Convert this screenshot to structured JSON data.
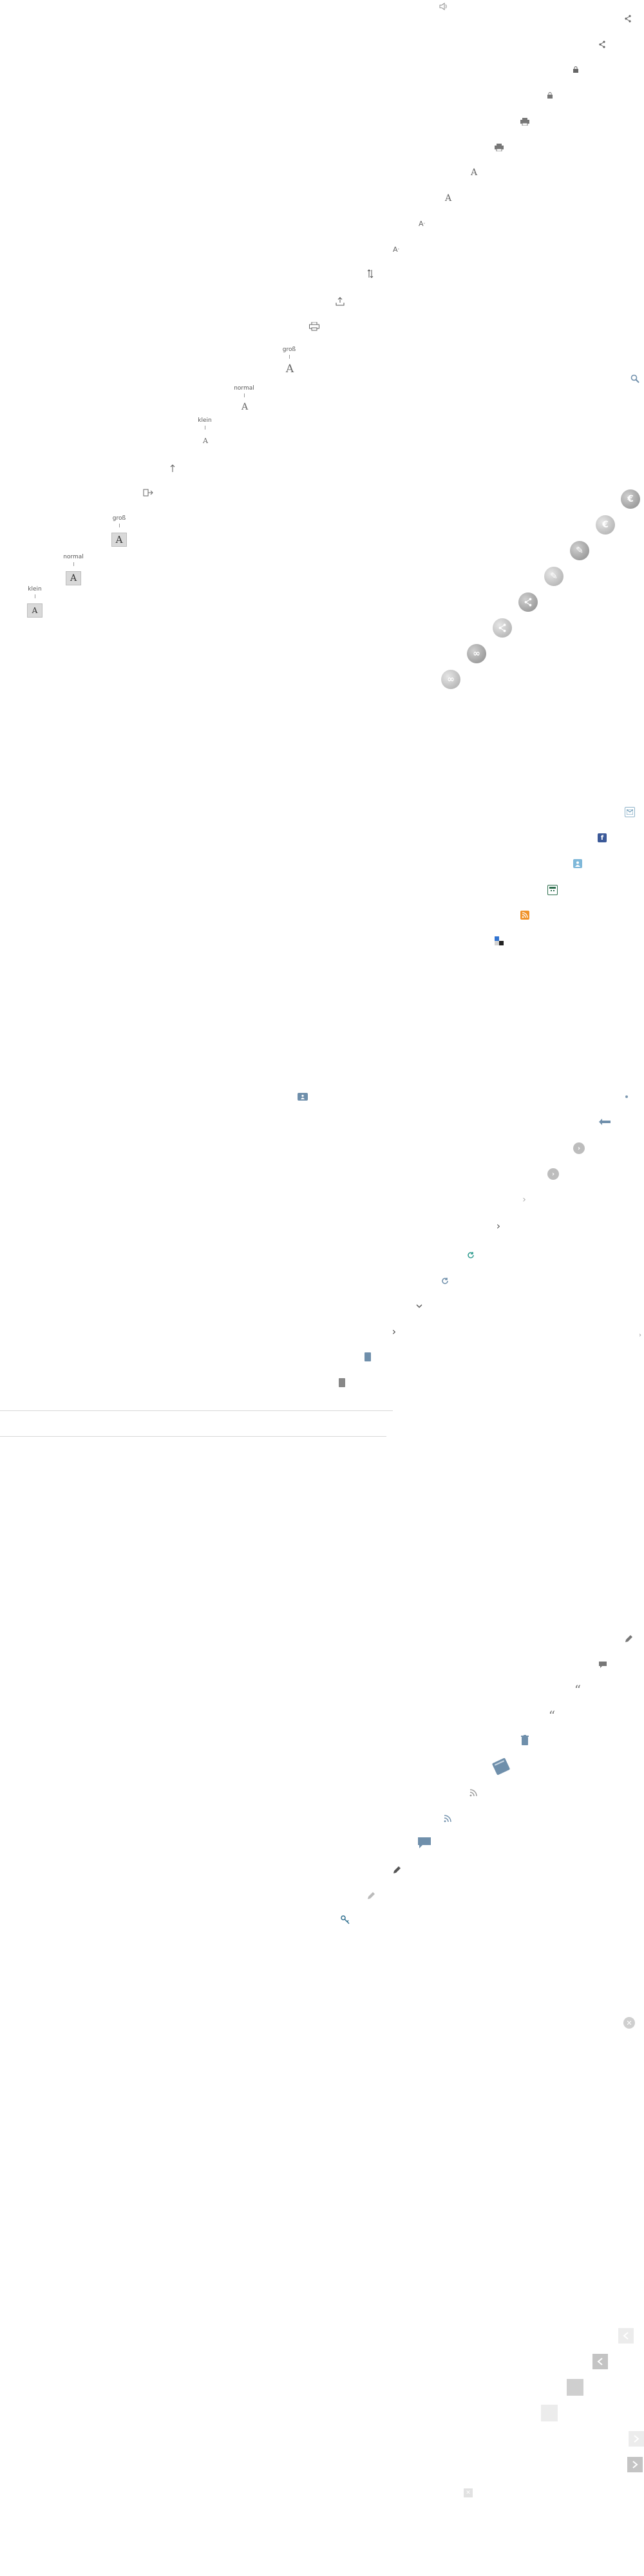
{
  "colors": {
    "icon_gray": "#666666",
    "light_gray": "#cccccc",
    "facebook_blue": "#3b5998",
    "rss_orange": "#f0932b",
    "teal": "#2f9c8f",
    "slate_blue": "#6f8fab"
  },
  "font_size_tool": {
    "small_label": "klein",
    "normal_label": "normal",
    "large_label": "groß",
    "letter": "A"
  },
  "font_size_tool_2": {
    "small_label": "klein",
    "normal_label": "normal",
    "large_label": "groß",
    "letter": "A"
  },
  "icons": [
    "speaker-icon",
    "share-icon",
    "lock-icon",
    "print-icon",
    "font-size-icon",
    "upload-icon",
    "download-icon",
    "search-icon",
    "euro-circle-icon",
    "share-circle-icon",
    "link-circle-icon",
    "mail-icon",
    "facebook-icon",
    "contact-icon",
    "calendar-icon",
    "rss-icon",
    "delicious-icon",
    "chevron-right-icon",
    "chevron-down-icon",
    "refresh-icon",
    "document-icon",
    "pencil-icon",
    "comment-icon",
    "quote-icon",
    "trash-icon",
    "book-icon",
    "key-icon",
    "close-circle-icon",
    "arrow-left-icon",
    "arrow-right-icon"
  ]
}
